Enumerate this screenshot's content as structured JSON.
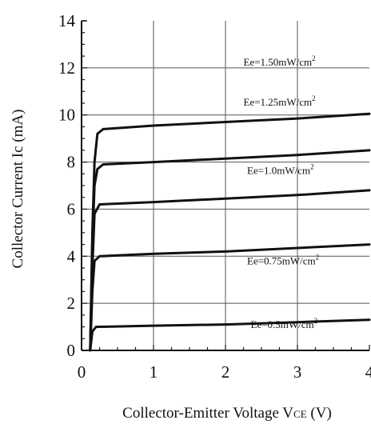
{
  "chart_data": {
    "type": "line",
    "title": "",
    "xlabel_main": "Collector-Emitter Voltage V",
    "xlabel_sub": "CE",
    "xlabel_unit": " (V)",
    "ylabel": "Collector Current Ic (mA)",
    "xlim": [
      0,
      4
    ],
    "ylim": [
      0,
      14
    ],
    "xticks": [
      0,
      1,
      2,
      3,
      4
    ],
    "yticks": [
      0,
      2,
      4,
      6,
      8,
      10,
      12,
      14
    ],
    "grid": true,
    "series": [
      {
        "name": "Ee=0.5mW/cm",
        "sup": "2",
        "x": [
          0.12,
          0.15,
          0.2,
          1,
          2,
          3,
          4
        ],
        "y": [
          0,
          0.8,
          1.0,
          1.05,
          1.1,
          1.2,
          1.3
        ]
      },
      {
        "name": "Ee=0.75mW/cm",
        "sup": "2",
        "x": [
          0.12,
          0.15,
          0.18,
          0.25,
          1,
          2,
          3,
          4
        ],
        "y": [
          0,
          2.5,
          3.8,
          4.0,
          4.1,
          4.2,
          4.35,
          4.5
        ]
      },
      {
        "name": "Ee=1.0mW/cm",
        "sup": "2",
        "x": [
          0.12,
          0.15,
          0.18,
          0.25,
          1,
          2,
          3,
          4
        ],
        "y": [
          0,
          3.5,
          5.8,
          6.2,
          6.3,
          6.45,
          6.6,
          6.8
        ]
      },
      {
        "name": "Ee=1.25mW/cm",
        "sup": "2",
        "x": [
          0.12,
          0.15,
          0.18,
          0.22,
          0.3,
          1,
          2,
          3,
          4
        ],
        "y": [
          0,
          4.5,
          7.0,
          7.7,
          7.9,
          8.0,
          8.15,
          8.3,
          8.5
        ]
      },
      {
        "name": "Ee=1.50mW/cm",
        "sup": "2",
        "x": [
          0.12,
          0.15,
          0.18,
          0.22,
          0.3,
          1,
          2,
          3,
          4
        ],
        "y": [
          0,
          5.0,
          8.0,
          9.2,
          9.4,
          9.55,
          9.7,
          9.85,
          10.05
        ]
      }
    ],
    "series_label_positions": [
      {
        "x": 2.35,
        "y": 0.95
      },
      {
        "x": 2.3,
        "y": 3.65
      },
      {
        "x": 2.3,
        "y": 7.5
      },
      {
        "x": 2.25,
        "y": 10.4
      },
      {
        "x": 2.25,
        "y": 12.1
      }
    ]
  }
}
